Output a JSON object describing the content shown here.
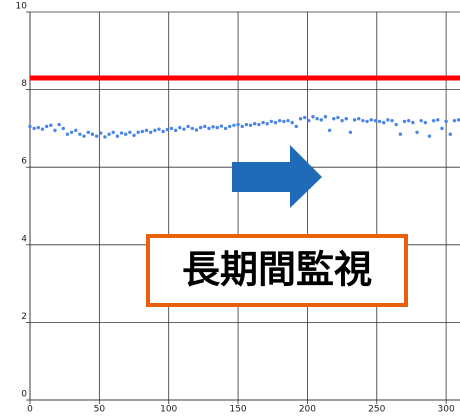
{
  "chart_data": {
    "type": "scatter",
    "xlim": [
      0,
      310
    ],
    "ylim": [
      0,
      10
    ],
    "xticks": [
      0,
      50,
      100,
      150,
      200,
      250,
      300
    ],
    "yticks": [
      0,
      2,
      4,
      6,
      8,
      10
    ],
    "grid": true,
    "reference_line": {
      "value": 8.3,
      "color": "#ff0000"
    },
    "annotation": "長期間監視",
    "series": [
      {
        "color": "#4a86e8",
        "x": [
          0,
          3,
          6,
          9,
          12,
          15,
          18,
          21,
          24,
          27,
          30,
          33,
          36,
          39,
          42,
          45,
          48,
          51,
          54,
          57,
          60,
          63,
          66,
          69,
          72,
          75,
          78,
          81,
          84,
          87,
          90,
          93,
          96,
          99,
          102,
          105,
          108,
          111,
          114,
          117,
          120,
          123,
          126,
          129,
          132,
          135,
          138,
          141,
          144,
          147,
          150,
          153,
          156,
          159,
          162,
          165,
          168,
          171,
          174,
          177,
          180,
          183,
          186,
          189,
          192,
          195,
          198,
          201,
          204,
          207,
          210,
          213,
          216,
          219,
          222,
          225,
          228,
          231,
          234,
          237,
          240,
          243,
          246,
          249,
          252,
          255,
          258,
          261,
          264,
          267,
          270,
          273,
          276,
          279,
          282,
          285,
          288,
          291,
          294,
          297,
          300,
          303,
          306,
          309
        ],
        "values": [
          7.05,
          7.0,
          7.02,
          6.98,
          7.05,
          7.08,
          6.95,
          7.1,
          7.0,
          6.85,
          6.9,
          6.95,
          6.85,
          6.8,
          6.9,
          6.85,
          6.8,
          6.88,
          6.78,
          6.85,
          6.9,
          6.8,
          6.88,
          6.85,
          6.9,
          6.82,
          6.9,
          6.92,
          6.95,
          6.9,
          6.95,
          6.98,
          6.92,
          6.97,
          7.0,
          6.95,
          7.02,
          6.98,
          7.05,
          7.0,
          6.96,
          7.02,
          7.05,
          7.0,
          7.04,
          7.02,
          7.06,
          7.0,
          7.05,
          7.08,
          7.1,
          7.05,
          7.1,
          7.08,
          7.12,
          7.1,
          7.15,
          7.12,
          7.18,
          7.15,
          7.2,
          7.18,
          7.2,
          7.15,
          7.05,
          7.25,
          7.28,
          7.2,
          7.3,
          7.25,
          7.22,
          7.3,
          6.95,
          7.25,
          7.28,
          7.2,
          7.25,
          6.9,
          7.22,
          7.25,
          7.2,
          7.18,
          7.22,
          7.2,
          7.18,
          7.15,
          7.22,
          7.2,
          7.1,
          6.85,
          7.18,
          7.2,
          7.15,
          6.9,
          7.2,
          7.15,
          6.8,
          7.2,
          7.22,
          7.0,
          7.18,
          6.85,
          7.2,
          7.22
        ]
      }
    ]
  }
}
